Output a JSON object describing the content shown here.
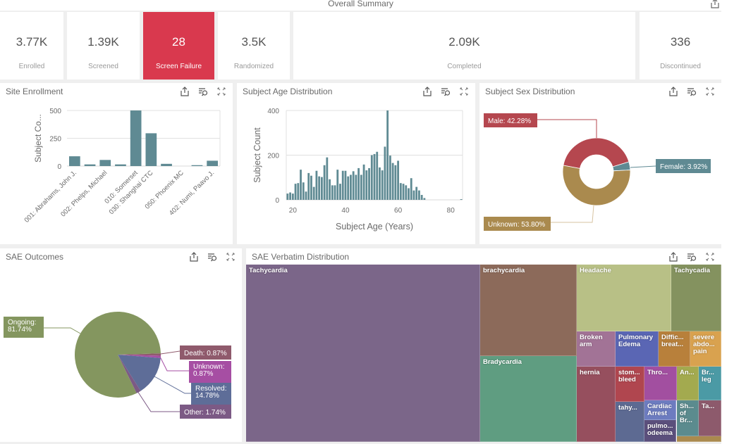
{
  "summary": {
    "title": "Overall Summary",
    "export_icon": "export-icon",
    "kpis": [
      {
        "value": "3.77K",
        "label": "Enrolled"
      },
      {
        "value": "1.39K",
        "label": "Screened"
      },
      {
        "value": "28",
        "label": "Screen Failure",
        "highlight": true,
        "color": "#d9394e"
      },
      {
        "value": "3.5K",
        "label": "Randomized"
      },
      {
        "value": "2.09K",
        "label": "Completed"
      },
      {
        "value": "336",
        "label": "Discontinued"
      }
    ]
  },
  "panel_icons": [
    "export-icon",
    "filter-search-icon",
    "fullscreen-icon"
  ],
  "panels": {
    "site_enrollment": {
      "title": "Site Enrollment"
    },
    "age_distribution": {
      "title": "Subject Age Distribution"
    },
    "sex_distribution": {
      "title": "Subject Sex Distribution"
    },
    "sae_outcomes": {
      "title": "SAE Outcomes"
    },
    "sae_verbatim": {
      "title": "SAE Verbatim Distribution"
    }
  },
  "chart_data": [
    {
      "id": "site_enrollment",
      "type": "bar",
      "title": "Site Enrollment",
      "xlabel": "",
      "ylabel": "Subject Co...",
      "ylim": [
        0,
        500
      ],
      "yticks": [
        0,
        250,
        500
      ],
      "grid": true,
      "color": "#5f8a93",
      "values": [
        88,
        15,
        55,
        15,
        500,
        295,
        20,
        0,
        8,
        48
      ],
      "tick_labels": [
        {
          "index": 0,
          "label": "001: Abrahams, John J."
        },
        {
          "index": 2,
          "label": "002: Phelps, Michael"
        },
        {
          "index": 4,
          "label": "010: Somerset"
        },
        {
          "index": 5,
          "label": "030: Shanghai CTC"
        },
        {
          "index": 7,
          "label": "050: Phoenix MC"
        },
        {
          "index": 9,
          "label": "402: Numi, Paavo J."
        }
      ]
    },
    {
      "id": "age_distribution",
      "type": "bar",
      "title": "Subject Age Distribution",
      "xlabel": "Subject Age (Years)",
      "ylabel": "Subject Count",
      "xlim": [
        17.5,
        84.5
      ],
      "ylim": [
        0,
        400
      ],
      "xticks": [
        20,
        40,
        60,
        80
      ],
      "yticks": [
        0,
        200,
        400
      ],
      "grid": true,
      "color": "#5f8a93",
      "x": [
        18,
        19,
        20,
        21,
        22,
        23,
        24,
        25,
        26,
        27,
        28,
        29,
        30,
        31,
        32,
        33,
        34,
        35,
        36,
        37,
        38,
        39,
        40,
        41,
        42,
        43,
        44,
        45,
        46,
        47,
        48,
        49,
        50,
        51,
        52,
        53,
        54,
        55,
        56,
        57,
        58,
        59,
        60,
        61,
        62,
        63,
        64,
        65,
        66,
        67,
        68,
        69,
        70,
        84
      ],
      "values": [
        28,
        33,
        28,
        72,
        75,
        135,
        78,
        37,
        120,
        108,
        58,
        130,
        105,
        102,
        155,
        190,
        92,
        65,
        65,
        135,
        72,
        130,
        130,
        105,
        112,
        128,
        112,
        142,
        112,
        158,
        132,
        142,
        200,
        205,
        215,
        145,
        132,
        238,
        400,
        198,
        165,
        155,
        175,
        75,
        72,
        65,
        52,
        97,
        42,
        58,
        42,
        22,
        8,
        3
      ]
    },
    {
      "id": "sex_distribution",
      "type": "pie",
      "donut": true,
      "title": "Subject Sex Distribution",
      "legend": "none",
      "slices": [
        {
          "label": "Male",
          "value": 42.28,
          "text": "Male: 42.28%",
          "color": "#b5474f"
        },
        {
          "label": "Female",
          "value": 3.92,
          "text": "Female: 3.92%",
          "color": "#5f8a93"
        },
        {
          "label": "Unknown",
          "value": 53.8,
          "text": "Unknown: 53.80%",
          "color": "#aa8a4e"
        }
      ]
    },
    {
      "id": "sae_outcomes",
      "type": "pie",
      "title": "SAE Outcomes",
      "legend": "none",
      "slices": [
        {
          "label": "Ongoing",
          "value": 81.74,
          "text": "Ongoing:\n81.74%",
          "color": "#84965f"
        },
        {
          "label": "Death",
          "value": 0.87,
          "text": "Death: 0.87%",
          "color": "#8f5a6c"
        },
        {
          "label": "Unknown",
          "value": 0.87,
          "text": "Unknown:\n0.87%",
          "color": "#a64ea3"
        },
        {
          "label": "Resolved",
          "value": 14.78,
          "text": "Resolved:\n14.78%",
          "color": "#5e6d98"
        },
        {
          "label": "Other",
          "value": 1.74,
          "text": "Other: 1.74%",
          "color": "#7c5a85"
        }
      ]
    },
    {
      "id": "sae_verbatim",
      "type": "treemap",
      "title": "SAE Verbatim Distribution",
      "items": [
        {
          "label": "Tachycardia",
          "color": "#7b6689"
        },
        {
          "label": "brachycardia",
          "color": "#8c6a5a"
        },
        {
          "label": "Bradycardia",
          "color": "#5f9d81"
        },
        {
          "label": "Headache",
          "color": "#b8c086"
        },
        {
          "label": "Tachycadia",
          "color": "#84925f"
        },
        {
          "label": "Broken arm",
          "color": "#a27396"
        },
        {
          "label": "Pulmonary Edema",
          "color": "#5a66b4"
        },
        {
          "label": "Diffic... breat...",
          "color": "#b8803b"
        },
        {
          "label": "severe abdo... pain",
          "color": "#d9a24f"
        },
        {
          "label": "hernia",
          "color": "#964f5e"
        },
        {
          "label": "stom... bleed",
          "color": "#b0464f"
        },
        {
          "label": "tahy...",
          "color": "#5d6a92"
        },
        {
          "label": "Thro...",
          "color": "#a24fa0"
        },
        {
          "label": "Cardiac Arrest",
          "color": "#6d7cc0"
        },
        {
          "label": "pulmo... odeema",
          "color": "#5b4f7c"
        },
        {
          "label": "An...",
          "color": "#a3aa4f"
        },
        {
          "label": "Br... leg",
          "color": "#4b9aa5"
        },
        {
          "label": "Sh... of Br...",
          "color": "#5b8b8e"
        },
        {
          "label": "Ta...",
          "color": "#8d5a6c"
        },
        {
          "label": "",
          "color": "#aa8a4e"
        }
      ]
    }
  ]
}
